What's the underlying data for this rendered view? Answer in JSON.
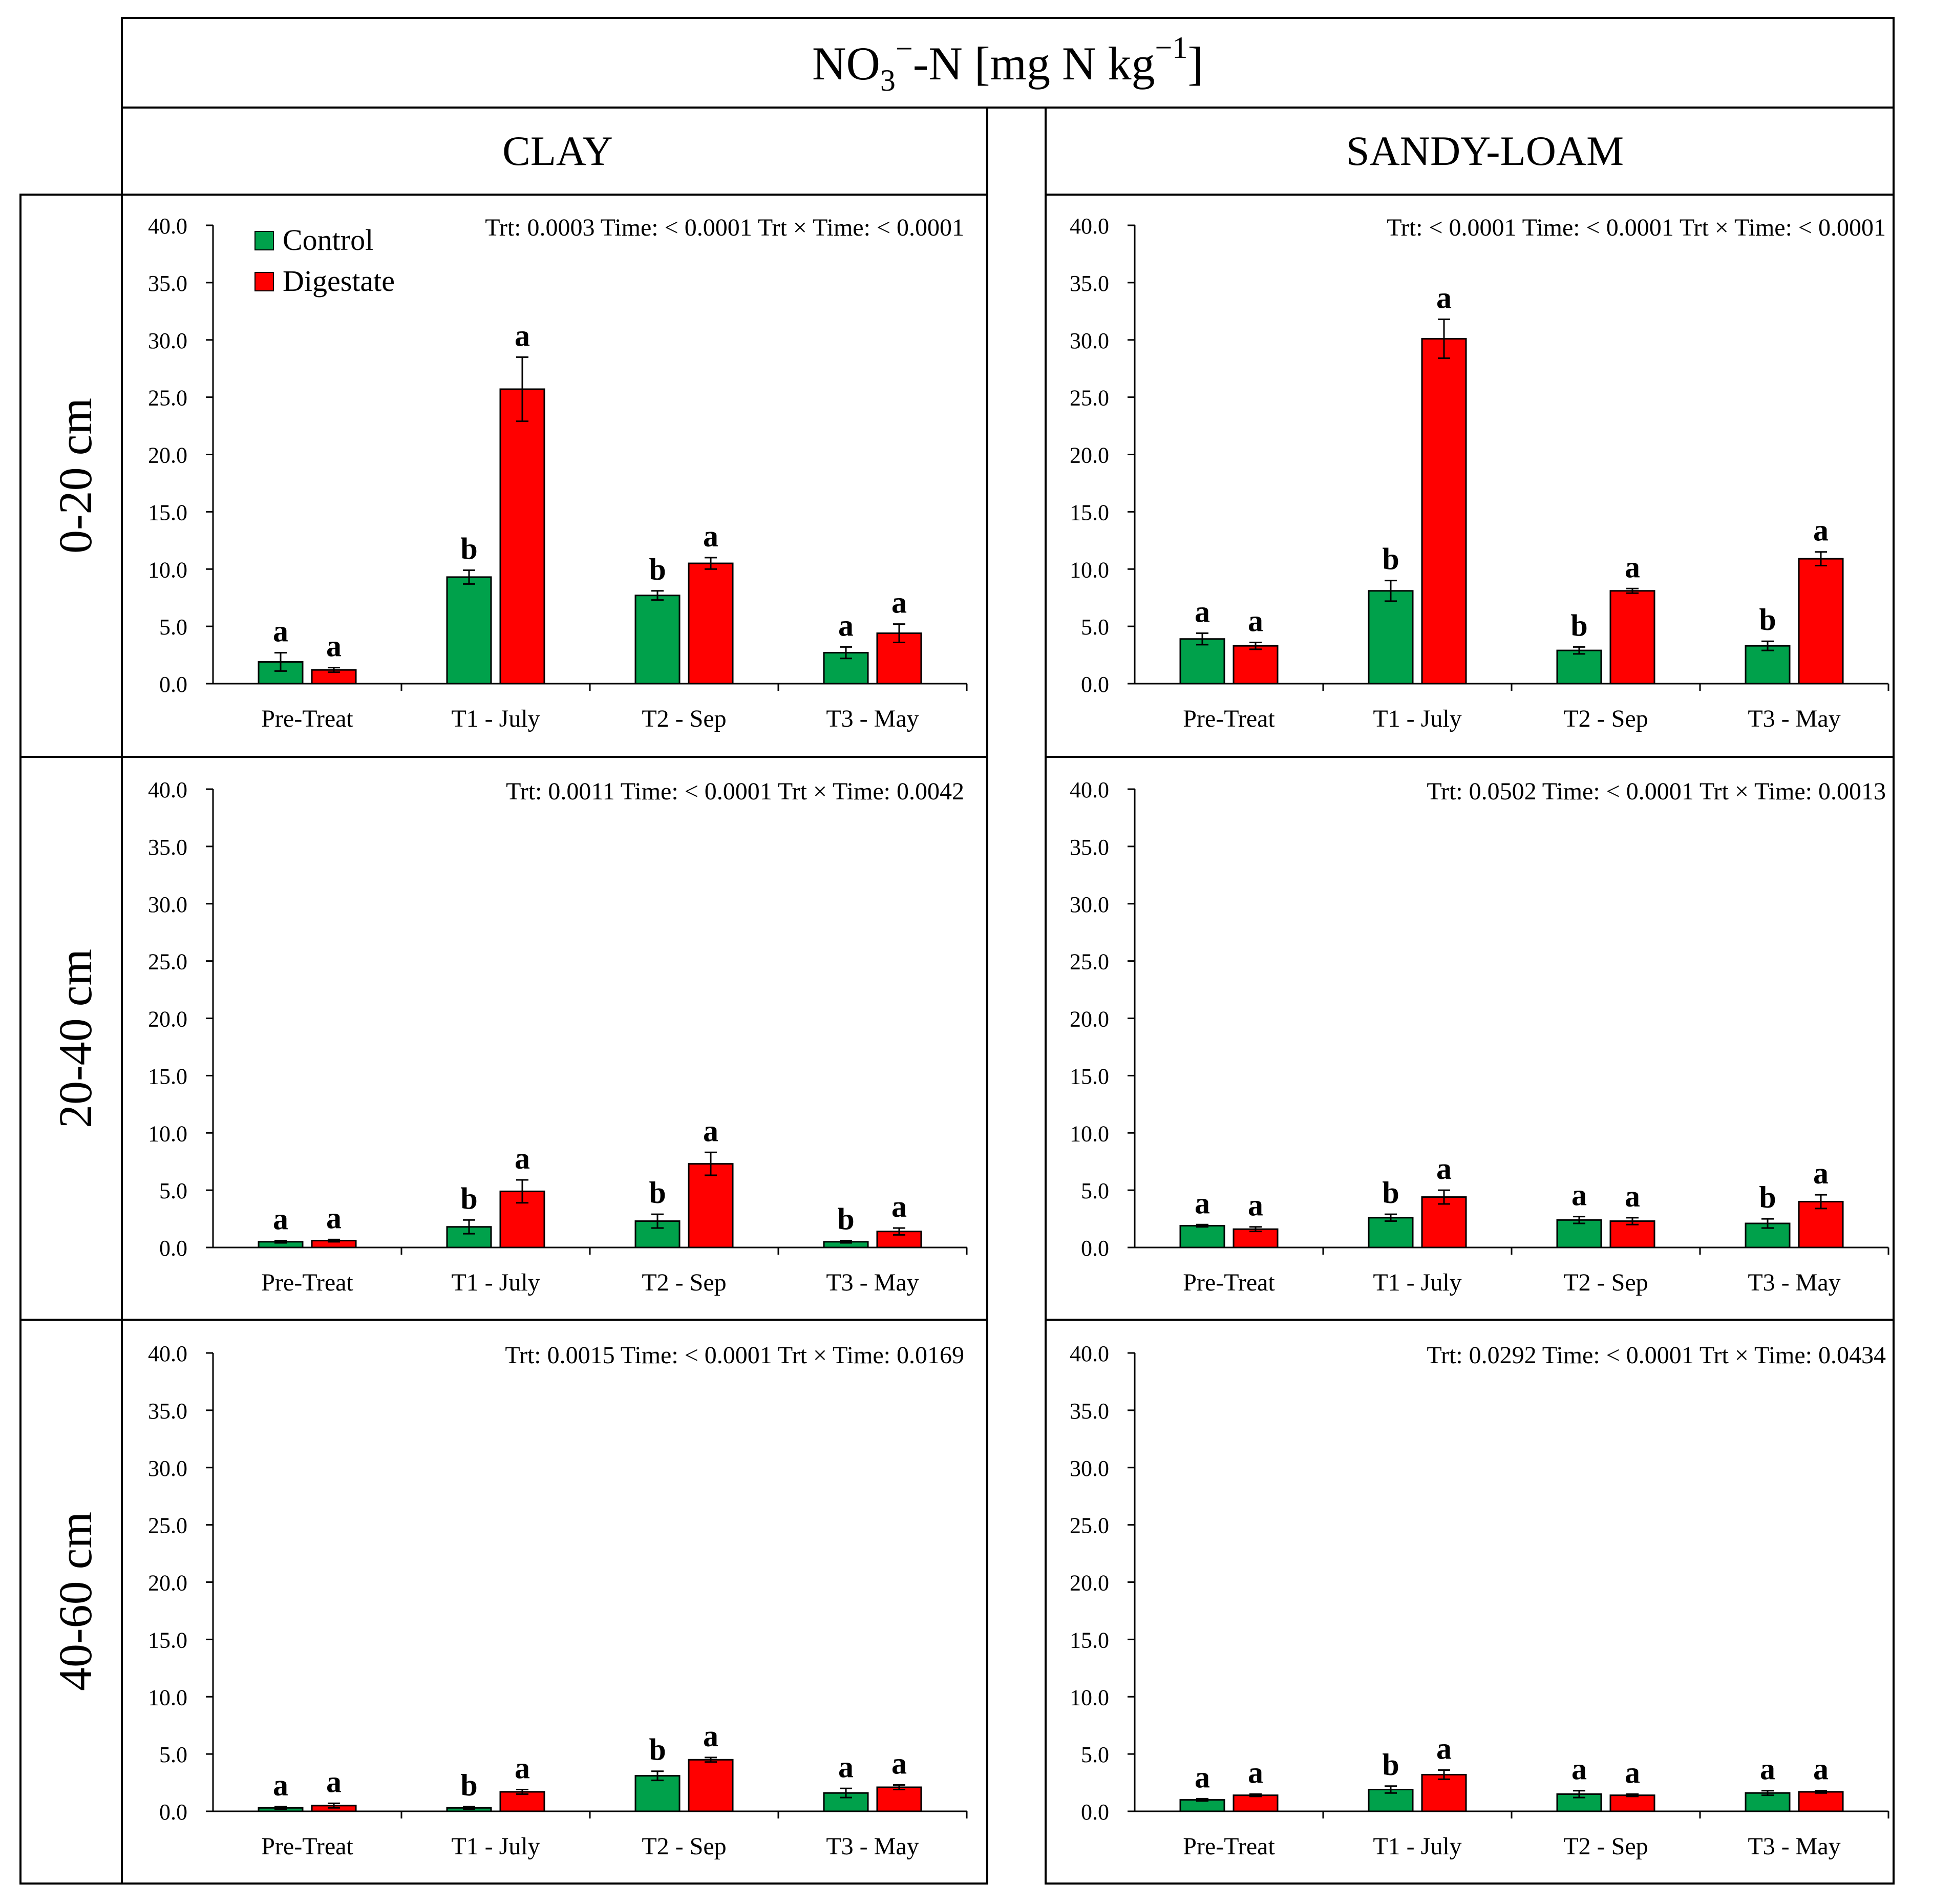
{
  "title": {
    "main": "NO",
    "sub": "3",
    "sup1": "−",
    "mid": "-N [mg N kg",
    "sup2": "−1",
    "end": "]"
  },
  "columns": [
    "CLAY",
    "SANDY-LOAM"
  ],
  "rows": [
    "0-20 cm",
    "20-40 cm",
    "40-60 cm"
  ],
  "legend": [
    {
      "label": "Control",
      "color": "#00A14B"
    },
    {
      "label": "Digestate",
      "color": "#FF0000"
    }
  ],
  "colors": {
    "control": "#00A14B",
    "digestate": "#FF0000",
    "axis": "#000000"
  },
  "chart_data": [
    {
      "type": "bar",
      "soil": "CLAY",
      "depth": "0-20 cm",
      "stats": "Trt: 0.0003  Time: < 0.0001  Trt × Time: < 0.0001",
      "categories": [
        "Pre-Treat",
        "T1 - July",
        "T2 - Sep",
        "T3 - May"
      ],
      "ylim": [
        0,
        40
      ],
      "yticks": [
        "0.0",
        "5.0",
        "10.0",
        "15.0",
        "20.0",
        "25.0",
        "30.0",
        "35.0",
        "40.0"
      ],
      "series": [
        {
          "name": "Control",
          "values": [
            1.9,
            9.3,
            7.7,
            2.7
          ],
          "errors": [
            0.8,
            0.6,
            0.4,
            0.5
          ],
          "letters": [
            "a",
            "b",
            "b",
            "a"
          ]
        },
        {
          "name": "Digestate",
          "values": [
            1.2,
            25.7,
            10.5,
            4.4
          ],
          "errors": [
            0.2,
            2.8,
            0.5,
            0.8
          ],
          "letters": [
            "a",
            "a",
            "a",
            "a"
          ]
        }
      ]
    },
    {
      "type": "bar",
      "soil": "SANDY-LOAM",
      "depth": "0-20 cm",
      "stats": "Trt: < 0.0001  Time: < 0.0001  Trt × Time: < 0.0001",
      "categories": [
        "Pre-Treat",
        "T1 - July",
        "T2 - Sep",
        "T3 - May"
      ],
      "ylim": [
        0,
        40
      ],
      "yticks": [
        "0.0",
        "5.0",
        "10.0",
        "15.0",
        "20.0",
        "25.0",
        "30.0",
        "35.0",
        "40.0"
      ],
      "series": [
        {
          "name": "Control",
          "values": [
            3.9,
            8.1,
            2.9,
            3.3
          ],
          "errors": [
            0.5,
            0.9,
            0.3,
            0.4
          ],
          "letters": [
            "a",
            "b",
            "b",
            "b"
          ]
        },
        {
          "name": "Digestate",
          "values": [
            3.3,
            30.1,
            8.1,
            10.9
          ],
          "errors": [
            0.3,
            1.7,
            0.2,
            0.6
          ],
          "letters": [
            "a",
            "a",
            "a",
            "a"
          ]
        }
      ]
    },
    {
      "type": "bar",
      "soil": "CLAY",
      "depth": "20-40 cm",
      "stats": "Trt: 0.0011  Time: < 0.0001  Trt × Time: 0.0042",
      "categories": [
        "Pre-Treat",
        "T1 - July",
        "T2 - Sep",
        "T3 - May"
      ],
      "ylim": [
        0,
        40
      ],
      "yticks": [
        "0.0",
        "5.0",
        "10.0",
        "15.0",
        "20.0",
        "25.0",
        "30.0",
        "35.0",
        "40.0"
      ],
      "series": [
        {
          "name": "Control",
          "values": [
            0.5,
            1.8,
            2.3,
            0.5
          ],
          "errors": [
            0.1,
            0.6,
            0.6,
            0.1
          ],
          "letters": [
            "a",
            "b",
            "b",
            "b"
          ]
        },
        {
          "name": "Digestate",
          "values": [
            0.6,
            4.9,
            7.3,
            1.4
          ],
          "errors": [
            0.1,
            1.0,
            1.0,
            0.3
          ],
          "letters": [
            "a",
            "a",
            "a",
            "a"
          ]
        }
      ]
    },
    {
      "type": "bar",
      "soil": "SANDY-LOAM",
      "depth": "20-40 cm",
      "stats": "Trt: 0.0502  Time: < 0.0001  Trt × Time: 0.0013",
      "categories": [
        "Pre-Treat",
        "T1 - July",
        "T2 - Sep",
        "T3 - May"
      ],
      "ylim": [
        0,
        40
      ],
      "yticks": [
        "0.0",
        "5.0",
        "10.0",
        "15.0",
        "20.0",
        "25.0",
        "30.0",
        "35.0",
        "40.0"
      ],
      "series": [
        {
          "name": "Control",
          "values": [
            1.9,
            2.6,
            2.4,
            2.1
          ],
          "errors": [
            0.1,
            0.3,
            0.3,
            0.4
          ],
          "letters": [
            "a",
            "b",
            "a",
            "b"
          ]
        },
        {
          "name": "Digestate",
          "values": [
            1.6,
            4.4,
            2.3,
            4.0
          ],
          "errors": [
            0.2,
            0.6,
            0.3,
            0.6
          ],
          "letters": [
            "a",
            "a",
            "a",
            "a"
          ]
        }
      ]
    },
    {
      "type": "bar",
      "soil": "CLAY",
      "depth": "40-60 cm",
      "stats": "Trt: 0.0015  Time: < 0.0001  Trt × Time: 0.0169",
      "categories": [
        "Pre-Treat",
        "T1 - July",
        "T2 - Sep",
        "T3 - May"
      ],
      "ylim": [
        0,
        40
      ],
      "yticks": [
        "0.0",
        "5.0",
        "10.0",
        "15.0",
        "20.0",
        "25.0",
        "30.0",
        "35.0",
        "40.0"
      ],
      "series": [
        {
          "name": "Control",
          "values": [
            0.3,
            0.3,
            3.1,
            1.6
          ],
          "errors": [
            0.1,
            0.1,
            0.4,
            0.4
          ],
          "letters": [
            "a",
            "b",
            "b",
            "a"
          ]
        },
        {
          "name": "Digestate",
          "values": [
            0.5,
            1.7,
            4.5,
            2.1
          ],
          "errors": [
            0.2,
            0.2,
            0.2,
            0.2
          ],
          "letters": [
            "a",
            "a",
            "a",
            "a"
          ]
        }
      ]
    },
    {
      "type": "bar",
      "soil": "SANDY-LOAM",
      "depth": "40-60 cm",
      "stats": "Trt: 0.0292  Time: < 0.0001  Trt × Time: 0.0434",
      "categories": [
        "Pre-Treat",
        "T1 - July",
        "T2 - Sep",
        "T3 - May"
      ],
      "ylim": [
        0,
        40
      ],
      "yticks": [
        "0.0",
        "5.0",
        "10.0",
        "15.0",
        "20.0",
        "25.0",
        "30.0",
        "35.0",
        "40.0"
      ],
      "series": [
        {
          "name": "Control",
          "values": [
            1.0,
            1.9,
            1.5,
            1.6
          ],
          "errors": [
            0.1,
            0.3,
            0.3,
            0.2
          ],
          "letters": [
            "a",
            "b",
            "a",
            "a"
          ]
        },
        {
          "name": "Digestate",
          "values": [
            1.4,
            3.2,
            1.4,
            1.7
          ],
          "errors": [
            0.1,
            0.4,
            0.1,
            0.1
          ],
          "letters": [
            "a",
            "a",
            "a",
            "a"
          ]
        }
      ]
    }
  ]
}
